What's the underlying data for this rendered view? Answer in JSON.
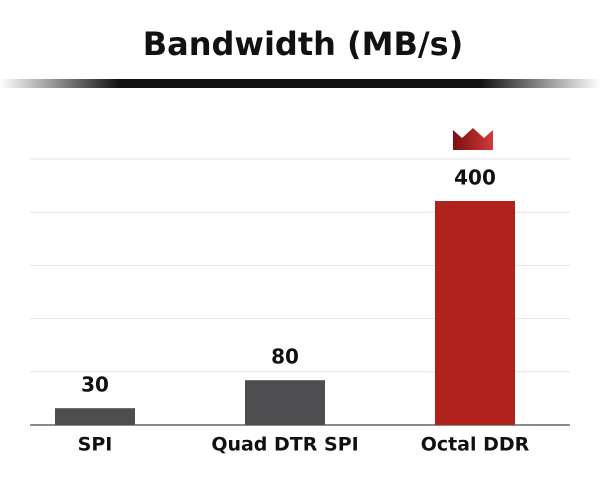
{
  "chart_data": {
    "type": "bar",
    "title": "Bandwidth (MB/s)",
    "categories": [
      "SPI",
      "Quad DTR SPI",
      "Octal DDR"
    ],
    "values": [
      30,
      80,
      400
    ],
    "colors": [
      "#4d4d4f",
      "#4d4d4f",
      "#b0231c"
    ],
    "ylim": [
      0,
      475
    ],
    "yticks": [
      0,
      95,
      190,
      285,
      380,
      475
    ],
    "grid": true
  }
}
